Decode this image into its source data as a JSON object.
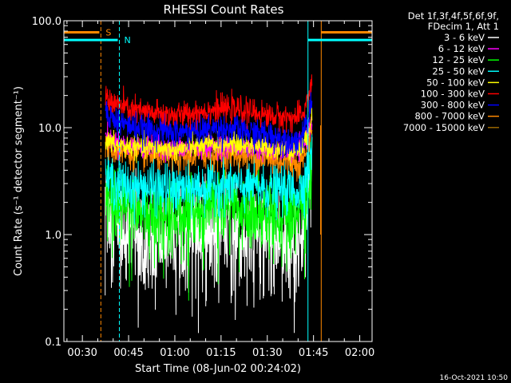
{
  "chart_data": {
    "type": "line",
    "title": "RHESSI Count Rates",
    "xlabel": "Start Time (08-Jun-02 00:24:02)",
    "ylabel": "Count Rate (s⁻¹ detector segment⁻¹)",
    "yscale": "log",
    "ylim": [
      0.1,
      100
    ],
    "xlim_minutes": [
      24.0,
      124.0
    ],
    "y_ticks": [
      "0.1",
      "1.0",
      "10.0",
      "100.0"
    ],
    "x_ticks": [
      {
        "label": "00:30",
        "minute": 30
      },
      {
        "label": "00:45",
        "minute": 45
      },
      {
        "label": "01:00",
        "minute": 60
      },
      {
        "label": "01:15",
        "minute": 75
      },
      {
        "label": "01:30",
        "minute": 90
      },
      {
        "label": "01:45",
        "minute": 105
      },
      {
        "label": "02:00",
        "minute": 120
      }
    ],
    "legend_header": [
      "Det 1f,3f,4f,5f,6f,9f,",
      "FDecim 1, Att 1"
    ],
    "series": [
      {
        "name": "3 - 6 keV",
        "color": "#ffffff",
        "minutes": [
          37.5,
          40,
          45,
          50,
          55,
          60,
          65,
          70,
          75,
          80,
          85,
          90,
          95,
          100,
          101.5,
          102.5,
          103.5,
          104.5
        ],
        "values": [
          2.0,
          1.3,
          1.15,
          1.05,
          0.95,
          0.95,
          1.05,
          1.15,
          1.25,
          1.2,
          1.1,
          1.0,
          1.0,
          0.95,
          1.2,
          1.8,
          3.0,
          4.5
        ]
      },
      {
        "name": "6 - 12 keV",
        "color": "#ff00ff",
        "minutes": [
          37.5,
          40,
          45,
          50,
          55,
          60,
          65,
          70,
          75,
          80,
          85,
          90,
          95,
          100,
          101.5,
          102.5,
          103.5,
          104.5
        ],
        "values": [
          8.5,
          7.5,
          6.8,
          6.6,
          6.5,
          6.3,
          6.4,
          6.6,
          6.8,
          6.7,
          6.5,
          6.2,
          6.1,
          6.0,
          6.5,
          7.5,
          9.5,
          12.0
        ]
      },
      {
        "name": "12 - 25 keV",
        "color": "#00ff00",
        "minutes": [
          37.5,
          40,
          45,
          50,
          55,
          60,
          65,
          70,
          75,
          80,
          85,
          90,
          95,
          100,
          101.5,
          102.5,
          103.5,
          104.5
        ],
        "values": [
          2.3,
          1.9,
          1.75,
          1.7,
          1.6,
          1.55,
          1.6,
          1.75,
          1.85,
          1.8,
          1.7,
          1.6,
          1.6,
          1.55,
          1.8,
          2.4,
          3.5,
          5.0
        ]
      },
      {
        "name": "25 - 50 keV",
        "color": "#00ffff",
        "minutes": [
          37.5,
          40,
          45,
          50,
          55,
          60,
          65,
          70,
          75,
          80,
          85,
          90,
          95,
          100,
          101.5,
          102.5,
          103.5,
          104.5
        ],
        "values": [
          3.6,
          3.1,
          2.8,
          2.8,
          2.7,
          2.65,
          2.7,
          2.85,
          2.95,
          2.9,
          2.8,
          2.7,
          2.65,
          2.6,
          2.9,
          3.5,
          4.5,
          6.0
        ]
      },
      {
        "name": "50 - 100 keV",
        "color": "#ffff00",
        "minutes": [
          37.5,
          40,
          45,
          50,
          55,
          60,
          65,
          70,
          75,
          80,
          85,
          90,
          95,
          100,
          101.5,
          102.5,
          103.5,
          104.5
        ],
        "values": [
          7.6,
          6.9,
          6.6,
          6.5,
          6.4,
          6.3,
          6.5,
          6.8,
          7.1,
          7.0,
          6.8,
          6.5,
          6.3,
          6.1,
          6.6,
          7.6,
          9.8,
          12.5
        ]
      },
      {
        "name": "100 - 300 keV",
        "color": "#ff0000",
        "minutes": [
          37.5,
          40,
          45,
          50,
          55,
          60,
          65,
          70,
          75,
          80,
          85,
          90,
          95,
          100,
          101.5,
          102.5,
          103.5,
          104.5
        ],
        "values": [
          20,
          17,
          15,
          14,
          13.5,
          13,
          13.5,
          14.5,
          15,
          14.8,
          14,
          13,
          12.5,
          12.3,
          13.5,
          16,
          21,
          27
        ]
      },
      {
        "name": "300 - 800 keV",
        "color": "#0000ff",
        "minutes": [
          37.5,
          40,
          45,
          50,
          55,
          60,
          65,
          70,
          75,
          80,
          85,
          90,
          95,
          100,
          101.5,
          102.5,
          103.5,
          104.5
        ],
        "values": [
          15,
          12,
          10.5,
          9.8,
          9.3,
          9.0,
          9.2,
          9.6,
          9.8,
          9.6,
          9.0,
          8.5,
          8.0,
          7.6,
          8.2,
          9.8,
          13,
          17
        ]
      },
      {
        "name": "800 - 7000 keV",
        "color": "#ff8800",
        "minutes": [
          37.5,
          40,
          45,
          50,
          55,
          60,
          65,
          70,
          75,
          80,
          85,
          90,
          95,
          100,
          101.5,
          102.5,
          103.5,
          104.5
        ],
        "values": [
          7.0,
          6.2,
          5.8,
          5.6,
          5.4,
          5.3,
          5.4,
          5.6,
          5.7,
          5.6,
          5.4,
          5.1,
          4.9,
          4.7,
          5.1,
          6.0,
          8.0,
          10.5
        ]
      },
      {
        "name": "7000 - 15000 keV",
        "color": "#996600",
        "minutes": [],
        "values": []
      }
    ],
    "annotations": [
      {
        "label": "S",
        "color": "#ff8800",
        "minute": 36.0,
        "level": 78
      },
      {
        "label": "N",
        "color": "#00ffff",
        "minute": 42.0,
        "level": 66
      }
    ],
    "markers": [
      {
        "color": "#ff8800",
        "minute": 36.0,
        "style": "dashed"
      },
      {
        "color": "#00ffff",
        "minute": 42.0,
        "style": "dashed"
      },
      {
        "color": "#00ffff",
        "minute": 24.0,
        "style": "solid"
      },
      {
        "color": "#00ffff",
        "minute": 103.2,
        "style": "solid"
      },
      {
        "color": "#ff8800",
        "minute": 107.5,
        "style": "solid"
      },
      {
        "color": "#ff8800",
        "minute": 124.0,
        "style": "dashed"
      }
    ],
    "flag_bars": [
      {
        "color": "#ff8800",
        "from": 24.0,
        "to": 35.5,
        "level": 78
      },
      {
        "color": "#00ffff",
        "from": 24.0,
        "to": 41.5,
        "level": 66
      },
      {
        "color": "#00ffff",
        "from": 103.2,
        "to": 124.0,
        "level": 66
      },
      {
        "color": "#ff8800",
        "from": 107.5,
        "to": 124.0,
        "level": 78
      }
    ],
    "timestamp": "16-Oct-2021 10:50"
  }
}
